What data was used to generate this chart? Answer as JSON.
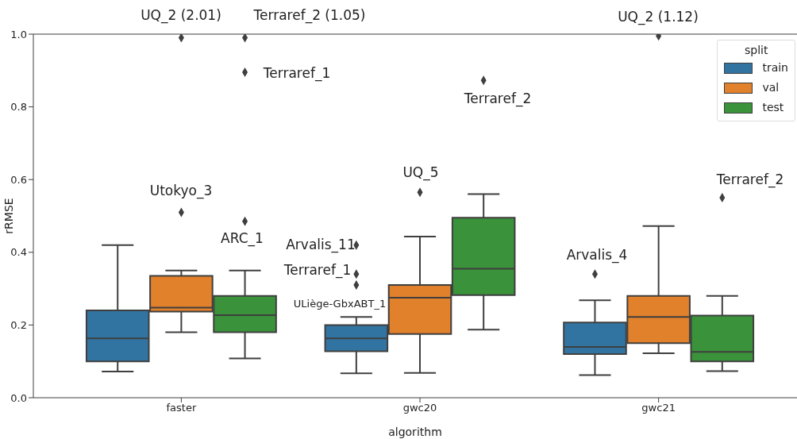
{
  "chart_data": {
    "type": "box",
    "categories": [
      "faster",
      "gwc20",
      "gwc21"
    ],
    "xlabel": "algorithm",
    "ylabel": "rRMSE",
    "legend_title": "split",
    "legend": "top right",
    "ylim": [
      0,
      1.0
    ],
    "yticks": [
      {
        "value": 0,
        "label": "0.0"
      },
      {
        "value": 0.2,
        "label": "0.2"
      },
      {
        "value": 0.4,
        "label": "0.4"
      },
      {
        "value": 0.6,
        "label": "0.6"
      },
      {
        "value": 0.8,
        "label": "0.8"
      },
      {
        "value": 1.0,
        "label": "1.0"
      }
    ],
    "series": [
      {
        "name": "train",
        "color": "#3274a1",
        "boxes": [
          {
            "low": 0.072,
            "q1": 0.1,
            "median": 0.163,
            "q3": 0.24,
            "high": 0.42
          },
          {
            "low": 0.067,
            "q1": 0.128,
            "median": 0.163,
            "q3": 0.2,
            "high": 0.222,
            "outliers": [
              0.31,
              0.34,
              0.42
            ]
          },
          {
            "low": 0.062,
            "q1": 0.12,
            "median": 0.14,
            "q3": 0.207,
            "high": 0.268,
            "outliers": [
              0.34
            ]
          }
        ]
      },
      {
        "name": "val",
        "color": "#e1812c",
        "boxes": [
          {
            "low": 0.18,
            "q1": 0.237,
            "median": 0.248,
            "q3": 0.335,
            "high": 0.35,
            "outliers": [
              0.51,
              0.99
            ]
          },
          {
            "low": 0.068,
            "q1": 0.175,
            "median": 0.275,
            "q3": 0.31,
            "high": 0.443,
            "outliers": [
              0.565
            ]
          },
          {
            "low": 0.122,
            "q1": 0.15,
            "median": 0.222,
            "q3": 0.28,
            "high": 0.472,
            "outliers": [
              0.995
            ]
          }
        ]
      },
      {
        "name": "test",
        "color": "#3a923a",
        "boxes": [
          {
            "low": 0.108,
            "q1": 0.18,
            "median": 0.227,
            "q3": 0.28,
            "high": 0.35,
            "outliers": [
              0.485,
              0.895,
              0.99
            ]
          },
          {
            "low": 0.187,
            "q1": 0.282,
            "median": 0.355,
            "q3": 0.495,
            "high": 0.56,
            "outliers": [
              0.873
            ]
          },
          {
            "low": 0.073,
            "q1": 0.1,
            "median": 0.126,
            "q3": 0.226,
            "high": 0.28,
            "outliers": [
              0.55
            ]
          }
        ]
      }
    ],
    "annotations": [
      "UQ_2 (2.01)",
      "Terraref_2 (1.05)",
      "Terraref_1",
      "Utokyo_3",
      "ARC_1",
      "Arvalis_11",
      "Terraref_1",
      "ULiège-GbxABT_1",
      "UQ_5",
      "Terraref_2",
      "Arvalis_4",
      "UQ_2 (1.12)",
      "Terraref_2"
    ]
  }
}
